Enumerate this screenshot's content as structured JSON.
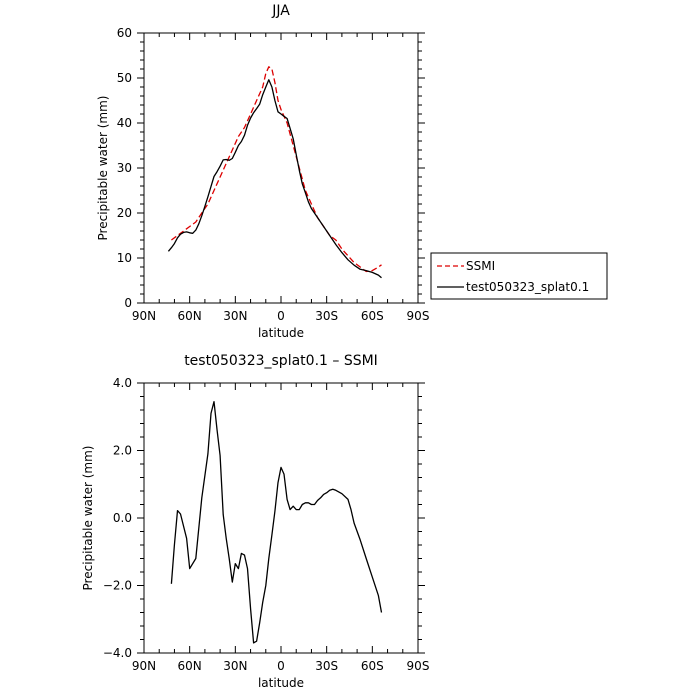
{
  "chart_data": [
    {
      "type": "line",
      "title": "JJA",
      "xlabel": "latitude",
      "ylabel": "Precipitable water (mm)",
      "xlim": [
        90,
        -90
      ],
      "ylim": [
        0,
        60
      ],
      "x_ticks": [
        90,
        60,
        30,
        0,
        -30,
        -60,
        -90
      ],
      "x_tick_labels": [
        "90N",
        "60N",
        "30N",
        "0",
        "30S",
        "60S",
        "90S"
      ],
      "y_ticks": [
        0,
        10,
        20,
        30,
        40,
        50,
        60
      ],
      "y_tick_labels": [
        "0",
        "10",
        "20",
        "30",
        "40",
        "50",
        "60"
      ],
      "grid": false,
      "legend": {
        "placement": "right",
        "entries": [
          "SSMI",
          "test050323_splat0.1"
        ]
      },
      "series": [
        {
          "name": "SSMI",
          "color": "#dd0000",
          "dashed": true,
          "x": [
            72,
            68,
            64,
            60,
            56,
            52,
            48,
            44,
            40,
            36,
            32,
            28,
            24,
            20,
            16,
            12,
            10,
            8,
            6,
            4,
            2,
            0,
            -4,
            -8,
            -12,
            -16,
            -20,
            -24,
            -28,
            -32,
            -36,
            -40,
            -44,
            -48,
            -52,
            -56,
            -60,
            -64,
            -66
          ],
          "y": [
            14,
            15,
            16,
            17,
            18,
            20,
            22,
            25,
            28,
            31,
            34,
            37,
            39,
            42,
            45,
            48,
            51,
            52.5,
            52,
            49,
            45,
            43,
            40,
            35,
            30,
            25,
            22,
            19,
            17,
            15,
            14,
            12,
            10.5,
            9,
            8,
            7,
            7.2,
            8,
            8.5
          ]
        },
        {
          "name": "test050323_splat0.1",
          "color": "#000000",
          "dashed": false,
          "x": [
            74,
            72,
            70,
            68,
            66,
            64,
            62,
            60,
            58,
            56,
            54,
            52,
            50,
            48,
            46,
            44,
            42,
            40,
            38,
            36,
            34,
            32,
            30,
            28,
            26,
            24,
            22,
            20,
            18,
            16,
            14,
            12,
            10,
            8,
            6,
            4,
            2,
            0,
            -2,
            -4,
            -6,
            -8,
            -10,
            -12,
            -14,
            -16,
            -18,
            -20,
            -24,
            -28,
            -32,
            -36,
            -40,
            -44,
            -48,
            -52,
            -56,
            -60,
            -64,
            -66
          ],
          "y": [
            11.5,
            12.3,
            13.2,
            14.5,
            15.3,
            15.7,
            15.8,
            15.6,
            15.5,
            16.2,
            17.6,
            19.4,
            21.5,
            23.6,
            25.9,
            28.1,
            29.2,
            30.4,
            31.8,
            31.9,
            31.7,
            32.1,
            33.5,
            35.0,
            35.9,
            37.3,
            39.5,
            41.1,
            42.3,
            43.2,
            44.2,
            46.3,
            48.0,
            49.6,
            48.0,
            45.0,
            42.5,
            42.0,
            41.5,
            41.0,
            38.8,
            36.5,
            33.0,
            29.5,
            26.5,
            24.5,
            22.5,
            21.0,
            19.0,
            17.0,
            15.0,
            13.0,
            11.2,
            9.6,
            8.4,
            7.5,
            7.2,
            6.8,
            6.2,
            5.6
          ]
        }
      ]
    },
    {
      "type": "line",
      "title": "test050323_splat0.1 – SSMI",
      "xlabel": "latitude",
      "ylabel": "Precipitable water (mm)",
      "xlim": [
        90,
        -90
      ],
      "ylim": [
        -4,
        4
      ],
      "x_ticks": [
        90,
        60,
        30,
        0,
        -30,
        -60,
        -90
      ],
      "x_tick_labels": [
        "90N",
        "60N",
        "30N",
        "0",
        "30S",
        "60S",
        "90S"
      ],
      "y_ticks": [
        -4,
        -2,
        0,
        2,
        4
      ],
      "y_tick_labels": [
        "−4.0",
        "−2.0",
        "0.0",
        "2.0",
        "4.0"
      ],
      "grid": false,
      "series": [
        {
          "color": "#000000",
          "dashed": false,
          "x": [
            72,
            70,
            68,
            66,
            62,
            60,
            56,
            52,
            48,
            46,
            44,
            42,
            40,
            38,
            36,
            34,
            32,
            30,
            28,
            26,
            24,
            22,
            20,
            18,
            16,
            14,
            12,
            10,
            8,
            6,
            4,
            2,
            0,
            -2,
            -4,
            -6,
            -8,
            -10,
            -12,
            -14,
            -16,
            -18,
            -20,
            -22,
            -24,
            -26,
            -28,
            -30,
            -32,
            -34,
            -36,
            -40,
            -44,
            -46,
            -48,
            -52,
            -56,
            -60,
            -64,
            -66
          ],
          "y": [
            -1.95,
            -0.8,
            0.22,
            0.12,
            -0.6,
            -1.5,
            -1.2,
            0.6,
            1.9,
            3.1,
            3.45,
            2.6,
            1.85,
            0.1,
            -0.6,
            -1.2,
            -1.9,
            -1.35,
            -1.5,
            -1.05,
            -1.1,
            -1.5,
            -2.7,
            -3.7,
            -3.65,
            -3.1,
            -2.5,
            -2.0,
            -1.2,
            -0.5,
            0.2,
            1.05,
            1.5,
            1.3,
            0.55,
            0.25,
            0.35,
            0.25,
            0.25,
            0.4,
            0.45,
            0.45,
            0.4,
            0.4,
            0.52,
            0.6,
            0.7,
            0.75,
            0.82,
            0.85,
            0.82,
            0.72,
            0.55,
            0.25,
            -0.15,
            -0.65,
            -1.2,
            -1.75,
            -2.3,
            -2.8
          ]
        }
      ]
    }
  ]
}
